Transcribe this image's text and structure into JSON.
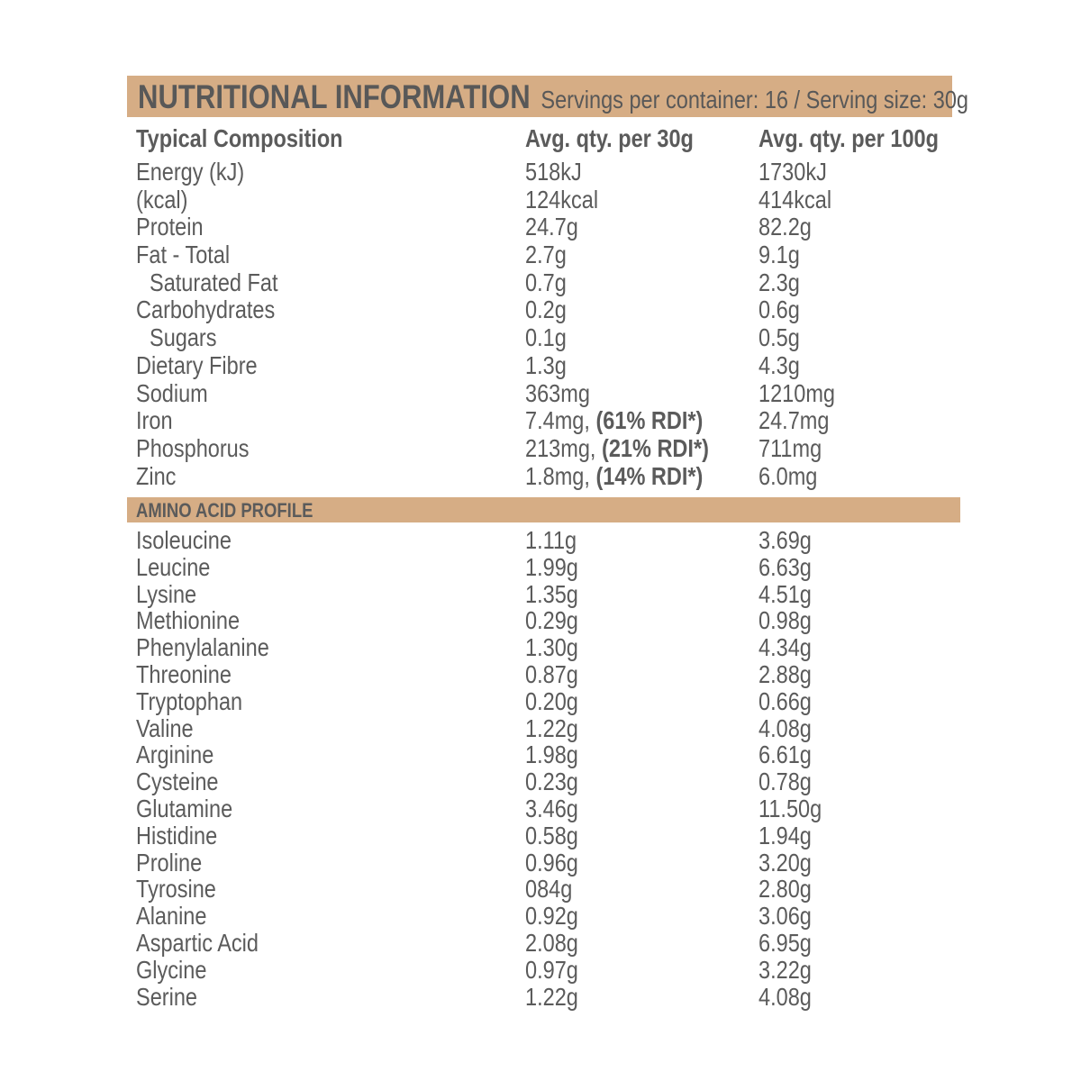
{
  "header": {
    "title": "NUTRITIONAL INFORMATION",
    "servings": "Servings per container: 16 / Serving size: 30g"
  },
  "columns": [
    "Typical Composition",
    "Avg. qty. per 30g",
    "Avg. qty. per 100g"
  ],
  "nutrients": [
    {
      "name": "Energy (kJ)",
      "per_serving": "518kJ",
      "per_100g": "1730kJ",
      "indent": false
    },
    {
      "name": "(kcal)",
      "per_serving": "124kcal",
      "per_100g": "414kcal",
      "indent": false
    },
    {
      "name": "Protein",
      "per_serving": "24.7g",
      "per_100g": "82.2g",
      "indent": false
    },
    {
      "name": "Fat - Total",
      "per_serving": "2.7g",
      "per_100g": "9.1g",
      "indent": false
    },
    {
      "name": "Saturated Fat",
      "per_serving": "0.7g",
      "per_100g": "2.3g",
      "indent": true
    },
    {
      "name": "Carbohydrates",
      "per_serving": "0.2g",
      "per_100g": "0.6g",
      "indent": false
    },
    {
      "name": "Sugars",
      "per_serving": "0.1g",
      "per_100g": "0.5g",
      "indent": true
    },
    {
      "name": "Dietary Fibre",
      "per_serving": "1.3g",
      "per_100g": "4.3g",
      "indent": false
    },
    {
      "name": "Sodium",
      "per_serving": "363mg",
      "per_100g": "1210mg",
      "indent": false
    },
    {
      "name": "Iron",
      "per_serving": "7.4mg,",
      "rdi": "(61% RDI*)",
      "per_100g": "24.7mg",
      "indent": false
    },
    {
      "name": "Phosphorus",
      "per_serving": "213mg,",
      "rdi": "(21% RDI*)",
      "per_100g": "711mg",
      "indent": false
    },
    {
      "name": "Zinc",
      "per_serving": "1.8mg,",
      "rdi": "(14% RDI*)",
      "per_100g": "6.0mg",
      "indent": false
    }
  ],
  "amino_title": "AMINO ACID PROFILE",
  "amino_acids": [
    {
      "name": "Isoleucine",
      "per_serving": "1.11g",
      "per_100g": "3.69g"
    },
    {
      "name": "Leucine",
      "per_serving": "1.99g",
      "per_100g": "6.63g"
    },
    {
      "name": "Lysine",
      "per_serving": "1.35g",
      "per_100g": "4.51g"
    },
    {
      "name": "Methionine",
      "per_serving": "0.29g",
      "per_100g": "0.98g"
    },
    {
      "name": "Phenylalanine",
      "per_serving": "1.30g",
      "per_100g": "4.34g"
    },
    {
      "name": "Threonine",
      "per_serving": "0.87g",
      "per_100g": "2.88g"
    },
    {
      "name": "Tryptophan",
      "per_serving": "0.20g",
      "per_100g": "0.66g"
    },
    {
      "name": "Valine",
      "per_serving": "1.22g",
      "per_100g": "4.08g"
    },
    {
      "name": "Arginine",
      "per_serving": "1.98g",
      "per_100g": "6.61g"
    },
    {
      "name": "Cysteine",
      "per_serving": "0.23g",
      "per_100g": "0.78g"
    },
    {
      "name": "Glutamine",
      "per_serving": "3.46g",
      "per_100g": "11.50g"
    },
    {
      "name": "Histidine",
      "per_serving": "0.58g",
      "per_100g": "1.94g"
    },
    {
      "name": "Proline",
      "per_serving": "0.96g",
      "per_100g": "3.20g"
    },
    {
      "name": "Tyrosine",
      "per_serving": "084g",
      "per_100g": "2.80g"
    },
    {
      "name": "Alanine",
      "per_serving": "0.92g",
      "per_100g": "3.06g"
    },
    {
      "name": "Aspartic Acid",
      "per_serving": "2.08g",
      "per_100g": "6.95g"
    },
    {
      "name": "Glycine",
      "per_serving": "0.97g",
      "per_100g": "3.22g"
    },
    {
      "name": "Serine",
      "per_serving": "1.22g",
      "per_100g": "4.08g"
    }
  ],
  "colors": {
    "band": "#d6ad85",
    "text": "#5b5b5b"
  }
}
